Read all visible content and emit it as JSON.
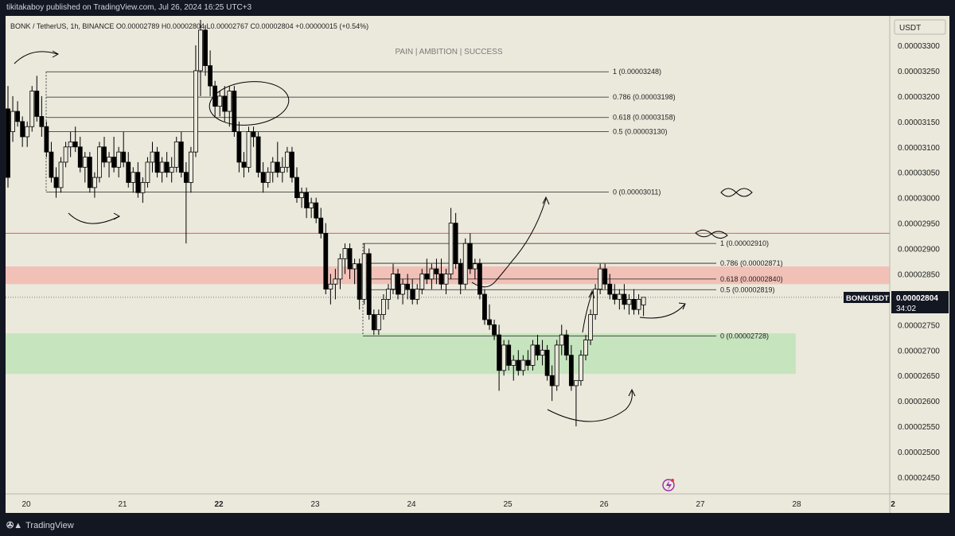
{
  "header": {
    "published_line": "tikitakaboy published on TradingView.com, Jul 26, 2024 16:25 UTC+3",
    "symbol_line": "BONK / TetherUS, 1h, BINANCE  O0.00002789  H0.00002804  L0.00002767  C0.00002804  +0.00000015 (+0.54%)",
    "tagline": "PAIN   |   AMBITION   |   SUCCESS"
  },
  "footer": {
    "brand": "TradingView",
    "logo_icon": "tradingview-logo-icon"
  },
  "colors": {
    "background": "#ebe9dc",
    "frame": "#131722",
    "candle": "#000000",
    "resistance_zone": "#f3b5ae",
    "support_zone": "#bfe3b8",
    "red_line": "#e05a5a"
  },
  "chart_data": {
    "type": "candlestick",
    "currency": "USDT",
    "symbol_label": "BONKUSDT",
    "last_price": "0.00002804",
    "countdown": "34:02",
    "ylim": [
      2.43e-05,
      3.36e-05
    ],
    "y_ticks": [
      "0.00003300",
      "0.00003250",
      "0.00003200",
      "0.00003150",
      "0.00003100",
      "0.00003050",
      "0.00003000",
      "0.00002950",
      "0.00002900",
      "0.00002850",
      "0.00002800",
      "0.00002750",
      "0.00002700",
      "0.00002650",
      "0.00002600",
      "0.00002550",
      "0.00002500",
      "0.00002450"
    ],
    "x_ticks": [
      "20",
      "21",
      "22",
      "23",
      "24",
      "25",
      "26",
      "27",
      "28",
      "2"
    ],
    "fib_upper": [
      {
        "label": "1 (0.00003248)",
        "value": 3.248e-05
      },
      {
        "label": "0.786 (0.00003198)",
        "value": 3.198e-05
      },
      {
        "label": "0.618 (0.00003158)",
        "value": 3.158e-05
      },
      {
        "label": "0.5 (0.00003130)",
        "value": 3.13e-05
      },
      {
        "label": "0 (0.00003011)",
        "value": 3.011e-05
      }
    ],
    "fib_lower": [
      {
        "label": "1 (0.00002910)",
        "value": 2.91e-05
      },
      {
        "label": "0.786 (0.00002871)",
        "value": 2.871e-05
      },
      {
        "label": "0.618 (0.00002840)",
        "value": 2.84e-05
      },
      {
        "label": "0.5 (0.00002819)",
        "value": 2.819e-05
      },
      {
        "label": "0 (0.00002728)",
        "value": 2.728e-05
      }
    ],
    "red_line_level": 2.93e-05,
    "resistance_zone": [
      2.83e-05,
      2.86e-05
    ],
    "support_zone": [
      2.65e-05,
      2.73e-05
    ],
    "candles": [
      {
        "x": 0.0,
        "o": 3.175,
        "h": 3.22,
        "l": 3.02,
        "c": 3.04
      },
      {
        "x": 0.05,
        "o": 3.13,
        "h": 3.2,
        "l": 3.11,
        "c": 3.17
      },
      {
        "x": 0.1,
        "o": 3.17,
        "h": 3.19,
        "l": 3.14,
        "c": 3.15
      },
      {
        "x": 0.15,
        "o": 3.15,
        "h": 3.16,
        "l": 3.1,
        "c": 3.12
      },
      {
        "x": 0.2,
        "o": 3.12,
        "h": 3.15,
        "l": 3.1,
        "c": 3.14
      },
      {
        "x": 0.25,
        "o": 3.14,
        "h": 3.22,
        "l": 3.13,
        "c": 3.21
      },
      {
        "x": 0.3,
        "o": 3.21,
        "h": 3.24,
        "l": 3.15,
        "c": 3.16
      },
      {
        "x": 0.35,
        "o": 3.16,
        "h": 3.2,
        "l": 3.12,
        "c": 3.14
      },
      {
        "x": 0.4,
        "o": 3.14,
        "h": 3.15,
        "l": 3.08,
        "c": 3.09
      },
      {
        "x": 0.45,
        "o": 3.09,
        "h": 3.11,
        "l": 3.03,
        "c": 3.04
      },
      {
        "x": 0.5,
        "o": 3.04,
        "h": 3.06,
        "l": 3.0,
        "c": 3.02
      },
      {
        "x": 0.55,
        "o": 3.02,
        "h": 3.08,
        "l": 3.01,
        "c": 3.07
      },
      {
        "x": 0.6,
        "o": 3.07,
        "h": 3.11,
        "l": 3.06,
        "c": 3.1
      },
      {
        "x": 0.65,
        "o": 3.1,
        "h": 3.13,
        "l": 3.08,
        "c": 3.11
      },
      {
        "x": 0.7,
        "o": 3.11,
        "h": 3.14,
        "l": 3.09,
        "c": 3.1
      },
      {
        "x": 0.75,
        "o": 3.1,
        "h": 3.12,
        "l": 3.05,
        "c": 3.06
      },
      {
        "x": 0.8,
        "o": 3.06,
        "h": 3.09,
        "l": 3.03,
        "c": 3.08
      },
      {
        "x": 0.85,
        "o": 3.08,
        "h": 3.09,
        "l": 3.01,
        "c": 3.02
      },
      {
        "x": 0.9,
        "o": 3.02,
        "h": 3.05,
        "l": 3.0,
        "c": 3.04
      },
      {
        "x": 0.95,
        "o": 3.04,
        "h": 3.11,
        "l": 3.03,
        "c": 3.1
      },
      {
        "x": 1.0,
        "o": 3.1,
        "h": 3.12,
        "l": 3.06,
        "c": 3.07
      },
      {
        "x": 1.05,
        "o": 3.07,
        "h": 3.09,
        "l": 3.04,
        "c": 3.08
      },
      {
        "x": 1.1,
        "o": 3.08,
        "h": 3.12,
        "l": 3.05,
        "c": 3.06
      },
      {
        "x": 1.15,
        "o": 3.06,
        "h": 3.1,
        "l": 3.04,
        "c": 3.09
      },
      {
        "x": 1.2,
        "o": 3.09,
        "h": 3.13,
        "l": 3.06,
        "c": 3.07
      },
      {
        "x": 1.25,
        "o": 3.07,
        "h": 3.09,
        "l": 3.02,
        "c": 3.03
      },
      {
        "x": 1.3,
        "o": 3.03,
        "h": 3.06,
        "l": 3.01,
        "c": 3.05
      },
      {
        "x": 1.35,
        "o": 3.05,
        "h": 3.07,
        "l": 3.0,
        "c": 3.01
      },
      {
        "x": 1.4,
        "o": 3.01,
        "h": 3.04,
        "l": 2.99,
        "c": 3.03
      },
      {
        "x": 1.45,
        "o": 3.03,
        "h": 3.08,
        "l": 3.02,
        "c": 3.07
      },
      {
        "x": 1.5,
        "o": 3.07,
        "h": 3.11,
        "l": 3.05,
        "c": 3.09
      },
      {
        "x": 1.55,
        "o": 3.09,
        "h": 3.1,
        "l": 3.04,
        "c": 3.05
      },
      {
        "x": 1.6,
        "o": 3.05,
        "h": 3.08,
        "l": 3.03,
        "c": 3.07
      },
      {
        "x": 1.65,
        "o": 3.07,
        "h": 3.09,
        "l": 3.04,
        "c": 3.05
      },
      {
        "x": 1.7,
        "o": 3.05,
        "h": 3.08,
        "l": 3.03,
        "c": 3.06
      },
      {
        "x": 1.75,
        "o": 3.06,
        "h": 3.12,
        "l": 3.05,
        "c": 3.11
      },
      {
        "x": 1.8,
        "o": 3.11,
        "h": 3.13,
        "l": 3.04,
        "c": 3.05
      },
      {
        "x": 1.85,
        "o": 3.05,
        "h": 3.07,
        "l": 2.91,
        "c": 3.03
      },
      {
        "x": 1.9,
        "o": 3.03,
        "h": 3.1,
        "l": 3.01,
        "c": 3.09
      },
      {
        "x": 1.95,
        "o": 3.09,
        "h": 3.3,
        "l": 3.08,
        "c": 3.25
      },
      {
        "x": 2.0,
        "o": 3.25,
        "h": 3.35,
        "l": 3.2,
        "c": 3.33
      },
      {
        "x": 2.05,
        "o": 3.33,
        "h": 3.34,
        "l": 3.24,
        "c": 3.26
      },
      {
        "x": 2.1,
        "o": 3.26,
        "h": 3.29,
        "l": 3.2,
        "c": 3.22
      },
      {
        "x": 2.15,
        "o": 3.22,
        "h": 3.23,
        "l": 3.16,
        "c": 3.18
      },
      {
        "x": 2.2,
        "o": 3.18,
        "h": 3.21,
        "l": 3.16,
        "c": 3.2
      },
      {
        "x": 2.25,
        "o": 3.2,
        "h": 3.22,
        "l": 3.15,
        "c": 3.17
      },
      {
        "x": 2.3,
        "o": 3.17,
        "h": 3.22,
        "l": 3.14,
        "c": 3.21
      },
      {
        "x": 2.35,
        "o": 3.21,
        "h": 3.22,
        "l": 3.12,
        "c": 3.13
      },
      {
        "x": 2.4,
        "o": 3.13,
        "h": 3.15,
        "l": 3.05,
        "c": 3.07
      },
      {
        "x": 2.45,
        "o": 3.07,
        "h": 3.09,
        "l": 3.04,
        "c": 3.06
      },
      {
        "x": 2.5,
        "o": 3.06,
        "h": 3.14,
        "l": 3.05,
        "c": 3.13
      },
      {
        "x": 2.55,
        "o": 3.13,
        "h": 3.14,
        "l": 3.1,
        "c": 3.12
      },
      {
        "x": 2.6,
        "o": 3.12,
        "h": 3.13,
        "l": 3.04,
        "c": 3.05
      },
      {
        "x": 2.65,
        "o": 3.05,
        "h": 3.07,
        "l": 3.01,
        "c": 3.03
      },
      {
        "x": 2.7,
        "o": 3.03,
        "h": 3.06,
        "l": 3.02,
        "c": 3.05
      },
      {
        "x": 2.75,
        "o": 3.05,
        "h": 3.08,
        "l": 3.03,
        "c": 3.07
      },
      {
        "x": 2.8,
        "o": 3.07,
        "h": 3.11,
        "l": 3.04,
        "c": 3.05
      },
      {
        "x": 2.85,
        "o": 3.05,
        "h": 3.08,
        "l": 3.03,
        "c": 3.06
      },
      {
        "x": 2.9,
        "o": 3.06,
        "h": 3.1,
        "l": 3.05,
        "c": 3.09
      },
      {
        "x": 2.95,
        "o": 3.09,
        "h": 3.1,
        "l": 3.03,
        "c": 3.04
      },
      {
        "x": 3.0,
        "o": 3.04,
        "h": 3.06,
        "l": 2.99,
        "c": 3.0
      },
      {
        "x": 3.05,
        "o": 3.0,
        "h": 3.02,
        "l": 2.98,
        "c": 3.01
      },
      {
        "x": 3.1,
        "o": 3.01,
        "h": 3.02,
        "l": 2.96,
        "c": 2.98
      },
      {
        "x": 3.15,
        "o": 2.98,
        "h": 3.0,
        "l": 2.96,
        "c": 2.99
      },
      {
        "x": 3.2,
        "o": 2.99,
        "h": 3.0,
        "l": 2.95,
        "c": 2.96
      },
      {
        "x": 3.25,
        "o": 2.96,
        "h": 2.98,
        "l": 2.92,
        "c": 2.93
      },
      {
        "x": 3.3,
        "o": 2.93,
        "h": 2.95,
        "l": 2.81,
        "c": 2.82
      },
      {
        "x": 3.35,
        "o": 2.82,
        "h": 2.85,
        "l": 2.79,
        "c": 2.83
      },
      {
        "x": 3.4,
        "o": 2.83,
        "h": 2.86,
        "l": 2.8,
        "c": 2.84
      },
      {
        "x": 3.45,
        "o": 2.84,
        "h": 2.89,
        "l": 2.82,
        "c": 2.88
      },
      {
        "x": 3.5,
        "o": 2.88,
        "h": 2.91,
        "l": 2.85,
        "c": 2.9
      },
      {
        "x": 3.55,
        "o": 2.9,
        "h": 2.91,
        "l": 2.84,
        "c": 2.86
      },
      {
        "x": 3.6,
        "o": 2.86,
        "h": 2.88,
        "l": 2.83,
        "c": 2.87
      },
      {
        "x": 3.65,
        "o": 2.87,
        "h": 2.88,
        "l": 2.78,
        "c": 2.8
      },
      {
        "x": 3.7,
        "o": 2.8,
        "h": 2.91,
        "l": 2.79,
        "c": 2.89
      },
      {
        "x": 3.75,
        "o": 2.89,
        "h": 2.9,
        "l": 2.76,
        "c": 2.77
      },
      {
        "x": 3.8,
        "o": 2.77,
        "h": 2.78,
        "l": 2.73,
        "c": 2.74
      },
      {
        "x": 3.85,
        "o": 2.74,
        "h": 2.78,
        "l": 2.73,
        "c": 2.77
      },
      {
        "x": 3.9,
        "o": 2.77,
        "h": 2.81,
        "l": 2.76,
        "c": 2.8
      },
      {
        "x": 3.95,
        "o": 2.8,
        "h": 2.83,
        "l": 2.78,
        "c": 2.82
      },
      {
        "x": 4.0,
        "o": 2.82,
        "h": 2.87,
        "l": 2.81,
        "c": 2.85
      },
      {
        "x": 4.05,
        "o": 2.85,
        "h": 2.86,
        "l": 2.8,
        "c": 2.81
      },
      {
        "x": 4.1,
        "o": 2.81,
        "h": 2.84,
        "l": 2.79,
        "c": 2.83
      },
      {
        "x": 4.15,
        "o": 2.83,
        "h": 2.85,
        "l": 2.8,
        "c": 2.82
      },
      {
        "x": 4.2,
        "o": 2.82,
        "h": 2.84,
        "l": 2.79,
        "c": 2.8
      },
      {
        "x": 4.25,
        "o": 2.8,
        "h": 2.83,
        "l": 2.79,
        "c": 2.82
      },
      {
        "x": 4.3,
        "o": 2.82,
        "h": 2.86,
        "l": 2.81,
        "c": 2.85
      },
      {
        "x": 4.35,
        "o": 2.85,
        "h": 2.88,
        "l": 2.83,
        "c": 2.84
      },
      {
        "x": 4.4,
        "o": 2.84,
        "h": 2.87,
        "l": 2.82,
        "c": 2.86
      },
      {
        "x": 4.45,
        "o": 2.86,
        "h": 2.88,
        "l": 2.83,
        "c": 2.85
      },
      {
        "x": 4.5,
        "o": 2.85,
        "h": 2.88,
        "l": 2.82,
        "c": 2.83
      },
      {
        "x": 4.55,
        "o": 2.83,
        "h": 2.86,
        "l": 2.81,
        "c": 2.85
      },
      {
        "x": 4.6,
        "o": 2.85,
        "h": 2.98,
        "l": 2.84,
        "c": 2.95
      },
      {
        "x": 4.65,
        "o": 2.95,
        "h": 2.97,
        "l": 2.86,
        "c": 2.87
      },
      {
        "x": 4.7,
        "o": 2.87,
        "h": 2.88,
        "l": 2.81,
        "c": 2.83
      },
      {
        "x": 4.75,
        "o": 2.83,
        "h": 2.92,
        "l": 2.82,
        "c": 2.91
      },
      {
        "x": 4.8,
        "o": 2.91,
        "h": 2.93,
        "l": 2.85,
        "c": 2.86
      },
      {
        "x": 4.85,
        "o": 2.86,
        "h": 2.88,
        "l": 2.84,
        "c": 2.87
      },
      {
        "x": 4.9,
        "o": 2.87,
        "h": 2.88,
        "l": 2.8,
        "c": 2.81
      },
      {
        "x": 4.95,
        "o": 2.81,
        "h": 2.82,
        "l": 2.75,
        "c": 2.76
      },
      {
        "x": 5.0,
        "o": 2.76,
        "h": 2.79,
        "l": 2.74,
        "c": 2.75
      },
      {
        "x": 5.05,
        "o": 2.75,
        "h": 2.76,
        "l": 2.72,
        "c": 2.73
      },
      {
        "x": 5.1,
        "o": 2.73,
        "h": 2.75,
        "l": 2.62,
        "c": 2.66
      },
      {
        "x": 5.15,
        "o": 2.66,
        "h": 2.72,
        "l": 2.65,
        "c": 2.71
      },
      {
        "x": 5.2,
        "o": 2.71,
        "h": 2.72,
        "l": 2.66,
        "c": 2.67
      },
      {
        "x": 5.25,
        "o": 2.67,
        "h": 2.69,
        "l": 2.64,
        "c": 2.68
      },
      {
        "x": 5.3,
        "o": 2.68,
        "h": 2.7,
        "l": 2.65,
        "c": 2.66
      },
      {
        "x": 5.35,
        "o": 2.66,
        "h": 2.69,
        "l": 2.65,
        "c": 2.68
      },
      {
        "x": 5.4,
        "o": 2.68,
        "h": 2.7,
        "l": 2.66,
        "c": 2.67
      },
      {
        "x": 5.45,
        "o": 2.67,
        "h": 2.72,
        "l": 2.66,
        "c": 2.71
      },
      {
        "x": 5.5,
        "o": 2.71,
        "h": 2.73,
        "l": 2.68,
        "c": 2.69
      },
      {
        "x": 5.55,
        "o": 2.69,
        "h": 2.72,
        "l": 2.67,
        "c": 2.7
      },
      {
        "x": 5.6,
        "o": 2.7,
        "h": 2.71,
        "l": 2.64,
        "c": 2.65
      },
      {
        "x": 5.65,
        "o": 2.65,
        "h": 2.67,
        "l": 2.6,
        "c": 2.63
      },
      {
        "x": 5.7,
        "o": 2.63,
        "h": 2.72,
        "l": 2.62,
        "c": 2.71
      },
      {
        "x": 5.75,
        "o": 2.71,
        "h": 2.75,
        "l": 2.69,
        "c": 2.73
      },
      {
        "x": 5.8,
        "o": 2.73,
        "h": 2.74,
        "l": 2.68,
        "c": 2.69
      },
      {
        "x": 5.85,
        "o": 2.69,
        "h": 2.71,
        "l": 2.62,
        "c": 2.63
      },
      {
        "x": 5.9,
        "o": 2.63,
        "h": 2.64,
        "l": 2.55,
        "c": 2.64
      },
      {
        "x": 5.95,
        "o": 2.64,
        "h": 2.7,
        "l": 2.63,
        "c": 2.69
      },
      {
        "x": 6.0,
        "o": 2.69,
        "h": 2.73,
        "l": 2.68,
        "c": 2.72
      },
      {
        "x": 6.05,
        "o": 2.72,
        "h": 2.78,
        "l": 2.71,
        "c": 2.77
      },
      {
        "x": 6.1,
        "o": 2.77,
        "h": 2.83,
        "l": 2.76,
        "c": 2.82
      },
      {
        "x": 6.15,
        "o": 2.82,
        "h": 2.87,
        "l": 2.81,
        "c": 2.86
      },
      {
        "x": 6.2,
        "o": 2.86,
        "h": 2.87,
        "l": 2.82,
        "c": 2.83
      },
      {
        "x": 6.25,
        "o": 2.83,
        "h": 2.85,
        "l": 2.8,
        "c": 2.81
      },
      {
        "x": 6.3,
        "o": 2.81,
        "h": 2.83,
        "l": 2.79,
        "c": 2.8
      },
      {
        "x": 6.35,
        "o": 2.8,
        "h": 2.82,
        "l": 2.78,
        "c": 2.81
      },
      {
        "x": 6.4,
        "o": 2.81,
        "h": 2.83,
        "l": 2.78,
        "c": 2.79
      },
      {
        "x": 6.45,
        "o": 2.79,
        "h": 2.81,
        "l": 2.77,
        "c": 2.8
      },
      {
        "x": 6.5,
        "o": 2.8,
        "h": 2.82,
        "l": 2.77,
        "c": 2.78
      },
      {
        "x": 6.55,
        "o": 2.78,
        "h": 2.81,
        "l": 2.77,
        "c": 2.8
      },
      {
        "x": 6.6,
        "o": 2.789,
        "h": 2.804,
        "l": 2.767,
        "c": 2.804
      }
    ]
  }
}
